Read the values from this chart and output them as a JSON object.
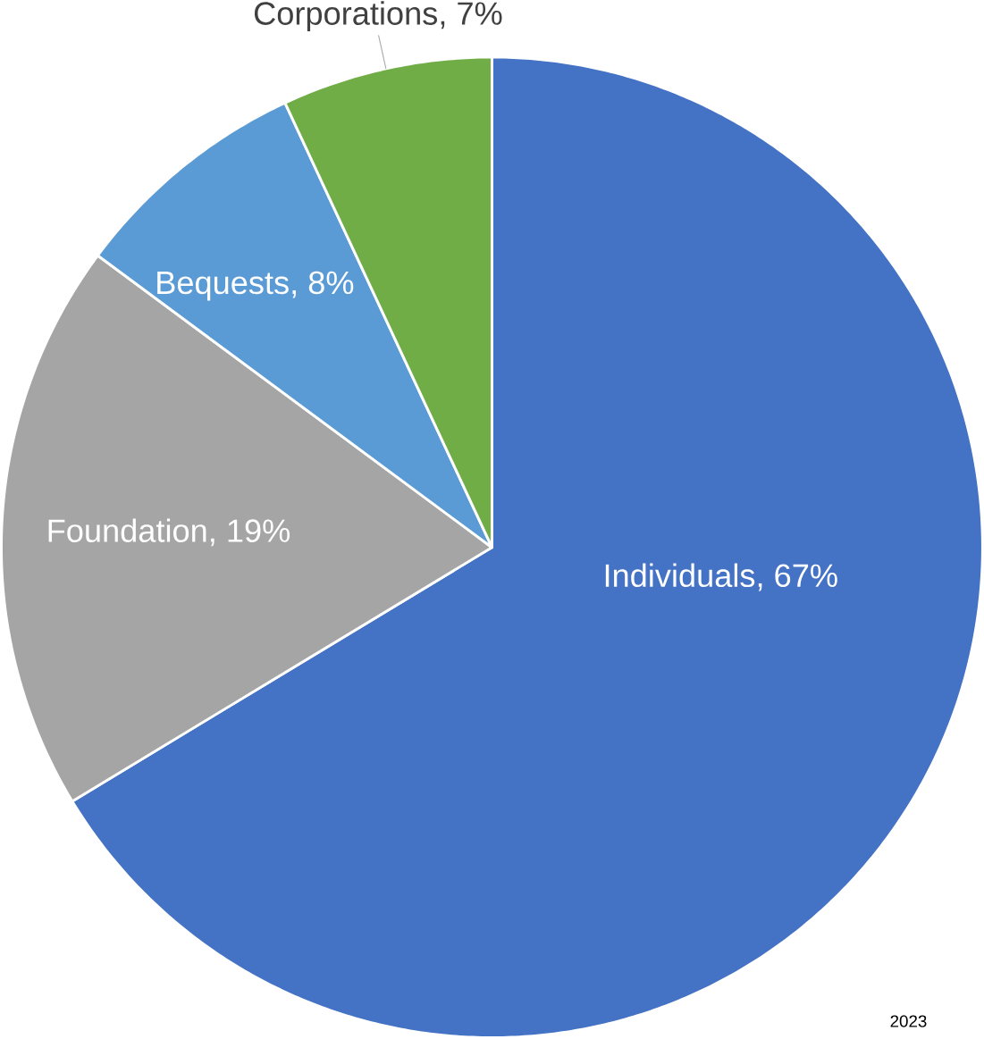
{
  "chart_data": {
    "type": "pie",
    "categories": [
      "Individuals",
      "Foundation",
      "Bequests",
      "Corporations"
    ],
    "values": [
      67,
      19,
      8,
      7
    ],
    "value_labels": [
      ", 67%",
      ", 19%",
      ", 8%",
      ", 7%"
    ],
    "colors": [
      "#4472c4",
      "#a5a5a5",
      "#5b9bd5",
      "#70ad47"
    ],
    "annotations": [
      "2023"
    ]
  }
}
